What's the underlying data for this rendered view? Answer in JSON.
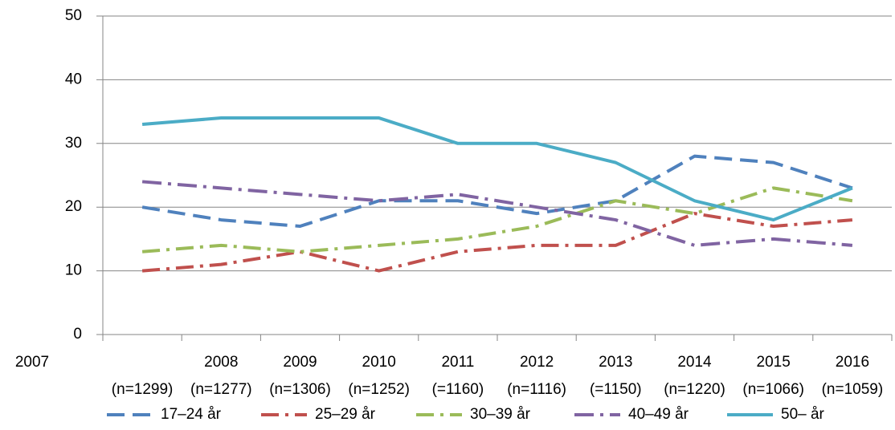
{
  "chart_data": {
    "type": "line",
    "categories": [
      "2007",
      "2008",
      "2009",
      "2010",
      "2011",
      "2012",
      "2013",
      "2014",
      "2015",
      "2016"
    ],
    "category_notes": [
      "(n=1299)",
      "(n=1277)",
      "(n=1306)",
      "(n=1252)",
      "(=1160)",
      "(n=1116)",
      "(=1150)",
      "(n=1220)",
      "(n=1066)",
      "(n=1059)"
    ],
    "series": [
      {
        "name": "17–24 år",
        "color": "#4f81bd",
        "dash": "22 10",
        "values": [
          20,
          18,
          17,
          21,
          21,
          19,
          21,
          28,
          27,
          23
        ]
      },
      {
        "name": "25–29 år",
        "color": "#c0504d",
        "dash": "22 8 4 8",
        "values": [
          10,
          11,
          13,
          10,
          13,
          14,
          14,
          19,
          17,
          18
        ]
      },
      {
        "name": "30–39 år",
        "color": "#9bbb59",
        "dash": "22 8 4 8",
        "values": [
          13,
          14,
          13,
          14,
          15,
          17,
          21,
          19,
          23,
          21
        ]
      },
      {
        "name": "40–49 år",
        "color": "#8064a2",
        "dash": "24 8 4 8",
        "values": [
          24,
          23,
          22,
          21,
          22,
          20,
          18,
          14,
          15,
          14
        ]
      },
      {
        "name": "50– år",
        "color": "#4bacc6",
        "values": [
          33,
          34,
          34,
          34,
          30,
          30,
          27,
          21,
          18,
          23
        ]
      }
    ],
    "ylim": [
      0,
      50
    ],
    "yticks": [
      0,
      10,
      20,
      30,
      40,
      50
    ],
    "grid": true,
    "legend": "bottom"
  }
}
